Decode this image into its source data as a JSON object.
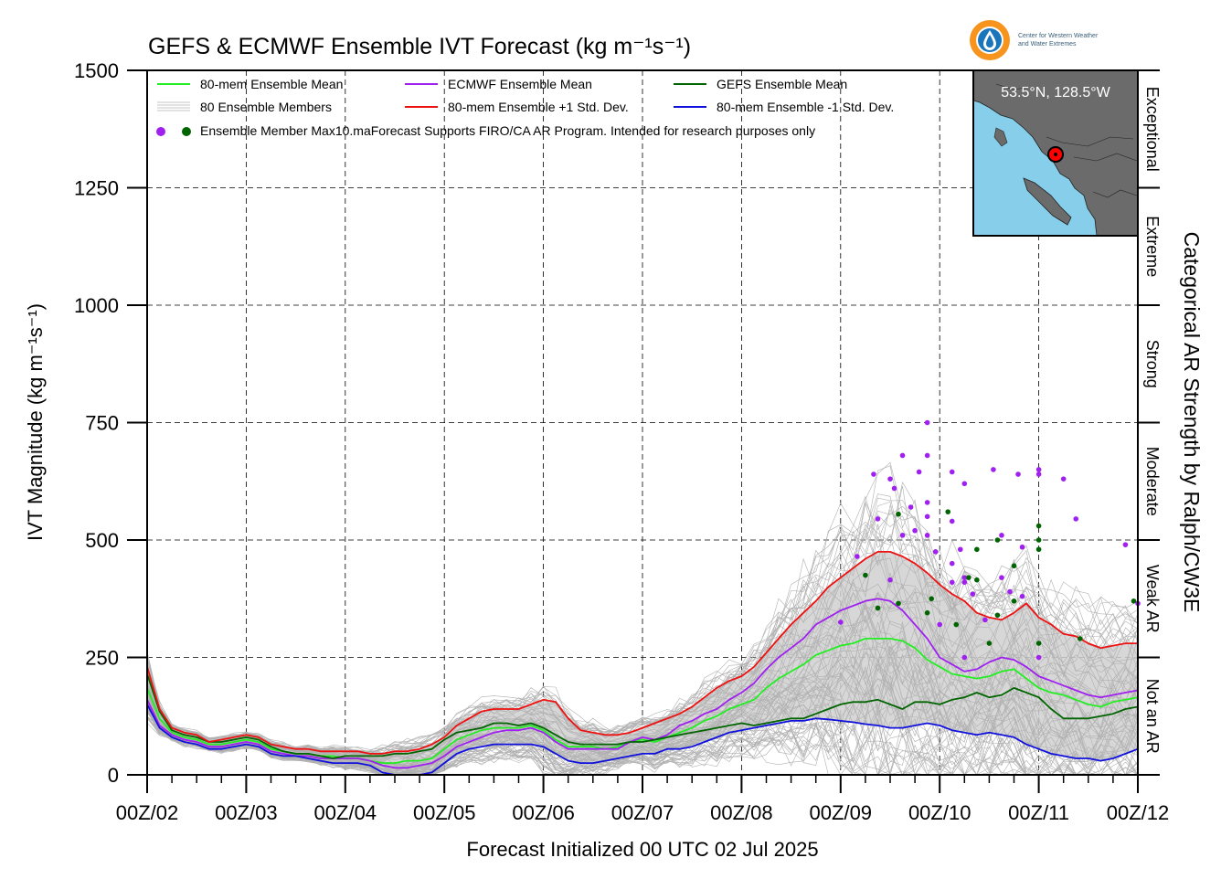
{
  "chart_data": {
    "type": "line",
    "title": "GEFS & ECMWF Ensemble IVT Forecast (kg m⁻¹s⁻¹)",
    "xlabel": "Forecast Initialized 00 UTC 02 Jul 2025",
    "ylabel": "IVT Magnitude (kg m⁻¹s⁻¹)",
    "right_label": "Categorical AR Strength by Ralph/CW3E",
    "ylim": [
      0,
      1500
    ],
    "xlim": [
      0,
      240
    ],
    "x_unit": "forecast hours",
    "x_tick_values": [
      0,
      24,
      48,
      72,
      96,
      120,
      144,
      168,
      192,
      216,
      240
    ],
    "x_tick_labels": [
      "00Z/02",
      "00Z/03",
      "00Z/04",
      "00Z/05",
      "00Z/06",
      "00Z/07",
      "00Z/08",
      "00Z/09",
      "00Z/10",
      "00Z/11",
      "00Z/12"
    ],
    "y_ticks": [
      0,
      250,
      500,
      750,
      1000,
      1250,
      1500
    ],
    "grid": true,
    "categories_ar": [
      {
        "label": "Not an AR",
        "from": 0,
        "to": 250
      },
      {
        "label": "Weak AR",
        "from": 250,
        "to": 500
      },
      {
        "label": "Moderate",
        "from": 500,
        "to": 750
      },
      {
        "label": "Strong",
        "from": 750,
        "to": 1000
      },
      {
        "label": "Extreme",
        "from": 1000,
        "to": 1250
      },
      {
        "label": "Exceptional",
        "from": 1250,
        "to": 1500
      }
    ],
    "legend": {
      "position": "top-left",
      "mean_all": "80-mem Ensemble Mean",
      "members": "80 Ensemble Members",
      "dots": "Ensemble Member Max",
      "ecmwf": "ECMWF Ensemble Mean",
      "plus_sd": "80-mem Ensemble +1 Std. Dev.",
      "gefs": "GEFS Ensemble Mean",
      "minus_sd": "80-mem Ensemble -1 Std. Dev.",
      "note": "10.maForecast Supports FIRO/CA AR Program. Intended for research purposes only"
    },
    "colors": {
      "mean_all": "#22ee22",
      "ecmwf": "#a020f0",
      "gefs": "#006400",
      "plus_sd": "#ee1111",
      "minus_sd": "#1111dd",
      "members": "#b0b0b0",
      "spread": "#d0d0d0"
    },
    "series": [
      {
        "name": "80-mem Ensemble Mean",
        "color": "#22ee22",
        "x": [
          0,
          3,
          6,
          9,
          12,
          15,
          18,
          21,
          24,
          27,
          30,
          33,
          36,
          39,
          42,
          45,
          48,
          51,
          54,
          57,
          60,
          63,
          66,
          69,
          72,
          75,
          78,
          81,
          84,
          87,
          90,
          93,
          96,
          99,
          102,
          105,
          108,
          111,
          114,
          117,
          120,
          123,
          126,
          129,
          132,
          135,
          138,
          141,
          144,
          147,
          150,
          153,
          156,
          159,
          162,
          165,
          168,
          171,
          174,
          177,
          180,
          183,
          186,
          189,
          192,
          195,
          198,
          201,
          204,
          207,
          210,
          213,
          216,
          219,
          222,
          225,
          228,
          231,
          234,
          237,
          240
        ],
        "y": [
          185,
          120,
          90,
          80,
          75,
          65,
          65,
          70,
          75,
          70,
          55,
          50,
          45,
          45,
          40,
          40,
          35,
          35,
          30,
          25,
          25,
          30,
          30,
          35,
          55,
          75,
          85,
          95,
          100,
          100,
          100,
          105,
          95,
          75,
          60,
          60,
          60,
          55,
          60,
          70,
          75,
          70,
          80,
          90,
          100,
          115,
          125,
          140,
          150,
          160,
          185,
          205,
          220,
          235,
          255,
          265,
          275,
          280,
          290,
          290,
          290,
          285,
          270,
          245,
          230,
          215,
          210,
          205,
          210,
          220,
          225,
          205,
          185,
          175,
          170,
          160,
          150,
          145,
          155,
          160,
          165
        ]
      },
      {
        "name": "ECMWF Ensemble Mean",
        "color": "#a020f0",
        "x": [
          0,
          3,
          6,
          9,
          12,
          15,
          18,
          21,
          24,
          27,
          30,
          33,
          36,
          39,
          42,
          45,
          48,
          51,
          54,
          57,
          60,
          63,
          66,
          69,
          72,
          75,
          78,
          81,
          84,
          87,
          90,
          93,
          96,
          99,
          102,
          105,
          108,
          111,
          114,
          117,
          120,
          123,
          126,
          129,
          132,
          135,
          138,
          141,
          144,
          147,
          150,
          153,
          156,
          159,
          162,
          165,
          168,
          171,
          174,
          177,
          180,
          183,
          186,
          189,
          192,
          195,
          198,
          201,
          204,
          207,
          210,
          213,
          216,
          219,
          222,
          225,
          228,
          231,
          234,
          237,
          240
        ],
        "y": [
          160,
          105,
          85,
          75,
          70,
          60,
          60,
          65,
          70,
          65,
          50,
          45,
          40,
          40,
          35,
          35,
          35,
          35,
          30,
          20,
          15,
          15,
          20,
          25,
          40,
          60,
          70,
          80,
          90,
          95,
          95,
          100,
          90,
          70,
          55,
          55,
          55,
          55,
          55,
          70,
          80,
          75,
          85,
          105,
          115,
          130,
          140,
          160,
          175,
          195,
          225,
          250,
          270,
          290,
          320,
          335,
          350,
          360,
          370,
          375,
          370,
          350,
          320,
          290,
          250,
          235,
          220,
          225,
          240,
          250,
          245,
          230,
          210,
          200,
          190,
          180,
          170,
          165,
          170,
          175,
          180
        ]
      },
      {
        "name": "GEFS Ensemble Mean",
        "color": "#006400",
        "x": [
          0,
          3,
          6,
          9,
          12,
          15,
          18,
          21,
          24,
          27,
          30,
          33,
          36,
          39,
          42,
          45,
          48,
          51,
          54,
          57,
          60,
          63,
          66,
          69,
          72,
          75,
          78,
          81,
          84,
          87,
          90,
          93,
          96,
          99,
          102,
          105,
          108,
          111,
          114,
          117,
          120,
          123,
          126,
          129,
          132,
          135,
          138,
          141,
          144,
          147,
          150,
          153,
          156,
          159,
          162,
          165,
          168,
          171,
          174,
          177,
          180,
          183,
          186,
          189,
          192,
          195,
          198,
          201,
          204,
          207,
          210,
          213,
          216,
          219,
          222,
          225,
          228,
          231,
          234,
          237,
          240
        ],
        "y": [
          215,
          135,
          95,
          85,
          80,
          70,
          70,
          75,
          80,
          75,
          60,
          50,
          45,
          45,
          40,
          35,
          40,
          40,
          40,
          40,
          45,
          45,
          50,
          55,
          75,
          90,
          95,
          100,
          110,
          110,
          105,
          110,
          100,
          85,
          70,
          65,
          65,
          65,
          65,
          70,
          70,
          75,
          80,
          85,
          90,
          95,
          100,
          105,
          110,
          105,
          110,
          115,
          120,
          120,
          130,
          140,
          150,
          155,
          155,
          160,
          150,
          140,
          155,
          155,
          150,
          160,
          165,
          175,
          165,
          170,
          185,
          175,
          165,
          140,
          120,
          120,
          120,
          125,
          130,
          140,
          145
        ]
      },
      {
        "name": "80-mem Ensemble +1 Std. Dev.",
        "color": "#ee1111",
        "x": [
          0,
          3,
          6,
          9,
          12,
          15,
          18,
          21,
          24,
          27,
          30,
          33,
          36,
          39,
          42,
          45,
          48,
          51,
          54,
          57,
          60,
          63,
          66,
          69,
          72,
          75,
          78,
          81,
          84,
          87,
          90,
          93,
          96,
          99,
          102,
          105,
          108,
          111,
          114,
          117,
          120,
          123,
          126,
          129,
          132,
          135,
          138,
          141,
          144,
          147,
          150,
          153,
          156,
          159,
          162,
          165,
          168,
          171,
          174,
          177,
          180,
          183,
          186,
          189,
          192,
          195,
          198,
          201,
          204,
          207,
          210,
          213,
          216,
          219,
          222,
          225,
          228,
          231,
          234,
          237,
          240
        ],
        "y": [
          230,
          140,
          100,
          90,
          85,
          70,
          75,
          80,
          85,
          80,
          65,
          60,
          55,
          55,
          50,
          50,
          50,
          50,
          45,
          45,
          50,
          50,
          55,
          65,
          80,
          105,
          120,
          135,
          140,
          140,
          140,
          150,
          160,
          155,
          120,
          95,
          90,
          85,
          85,
          90,
          100,
          110,
          120,
          130,
          145,
          165,
          185,
          200,
          210,
          230,
          260,
          290,
          320,
          345,
          370,
          400,
          420,
          440,
          460,
          475,
          475,
          465,
          450,
          430,
          405,
          385,
          370,
          345,
          335,
          330,
          345,
          365,
          335,
          320,
          300,
          295,
          280,
          270,
          275,
          280,
          280
        ]
      },
      {
        "name": "80-mem Ensemble -1 Std. Dev.",
        "color": "#1111dd",
        "x": [
          0,
          3,
          6,
          9,
          12,
          15,
          18,
          21,
          24,
          27,
          30,
          33,
          36,
          39,
          42,
          45,
          48,
          51,
          54,
          57,
          60,
          63,
          66,
          69,
          72,
          75,
          78,
          81,
          84,
          87,
          90,
          93,
          96,
          99,
          102,
          105,
          108,
          111,
          114,
          117,
          120,
          123,
          126,
          129,
          132,
          135,
          138,
          141,
          144,
          147,
          150,
          153,
          156,
          159,
          162,
          165,
          168,
          171,
          174,
          177,
          180,
          183,
          186,
          189,
          192,
          195,
          198,
          201,
          204,
          207,
          210,
          213,
          216,
          219,
          222,
          225,
          228,
          231,
          234,
          237,
          240
        ],
        "y": [
          150,
          100,
          80,
          70,
          65,
          55,
          55,
          60,
          65,
          60,
          45,
          40,
          40,
          35,
          30,
          25,
          25,
          25,
          20,
          5,
          0,
          0,
          0,
          5,
          25,
          45,
          55,
          60,
          65,
          65,
          65,
          65,
          60,
          45,
          30,
          25,
          25,
          30,
          35,
          40,
          45,
          45,
          55,
          55,
          60,
          70,
          80,
          90,
          95,
          100,
          105,
          110,
          115,
          115,
          120,
          118,
          115,
          112,
          108,
          105,
          100,
          100,
          105,
          110,
          105,
          95,
          90,
          85,
          90,
          85,
          80,
          65,
          55,
          45,
          40,
          35,
          35,
          30,
          35,
          45,
          55
        ]
      },
      {
        "name": "Ensemble Member Max (ECMWF)",
        "color": "#a020f0",
        "mode": "markers",
        "x": [
          168,
          172,
          176,
          177,
          180,
          180,
          181,
          183,
          183,
          185,
          186,
          187,
          189,
          189,
          189,
          189,
          189,
          191,
          192,
          195,
          195,
          195,
          195,
          197,
          198,
          198,
          198,
          198,
          200,
          203,
          205,
          207,
          207,
          209,
          211,
          212,
          212,
          216,
          216,
          216,
          222,
          225,
          237,
          240
        ],
        "y": [
          325,
          465,
          640,
          545,
          630,
          415,
          610,
          510,
          680,
          570,
          520,
          645,
          750,
          680,
          580,
          550,
          510,
          475,
          320,
          645,
          540,
          450,
          410,
          480,
          620,
          420,
          410,
          250,
          385,
          330,
          650,
          510,
          420,
          390,
          640,
          485,
          380,
          250,
          640,
          650,
          630,
          545,
          490,
          365
        ]
      },
      {
        "name": "Ensemble Member Max (GEFS)",
        "color": "#006400",
        "mode": "markers",
        "x": [
          174,
          177,
          182,
          182,
          189,
          190,
          194,
          196,
          199,
          201,
          201,
          204,
          206,
          206,
          210,
          210,
          216,
          216,
          216,
          216,
          226,
          239
        ],
        "y": [
          425,
          355,
          365,
          555,
          345,
          375,
          560,
          320,
          420,
          415,
          480,
          280,
          500,
          340,
          445,
          370,
          280,
          530,
          500,
          480,
          290,
          370
        ]
      }
    ],
    "members_note": "80 Ensemble Members drawn as thin grey lines filling the spread envelope"
  },
  "inset_map": {
    "location_label": "53.5°N, 128.5°W",
    "land_color": "#6b6b6b",
    "water_color": "#87ceeb",
    "marker_color": "#ff0000"
  },
  "logo": {
    "line1": "Center for Western Weather",
    "line2": "and Water Extremes",
    "ring_color": "#f7941d",
    "drop_color": "#1b75bb"
  }
}
